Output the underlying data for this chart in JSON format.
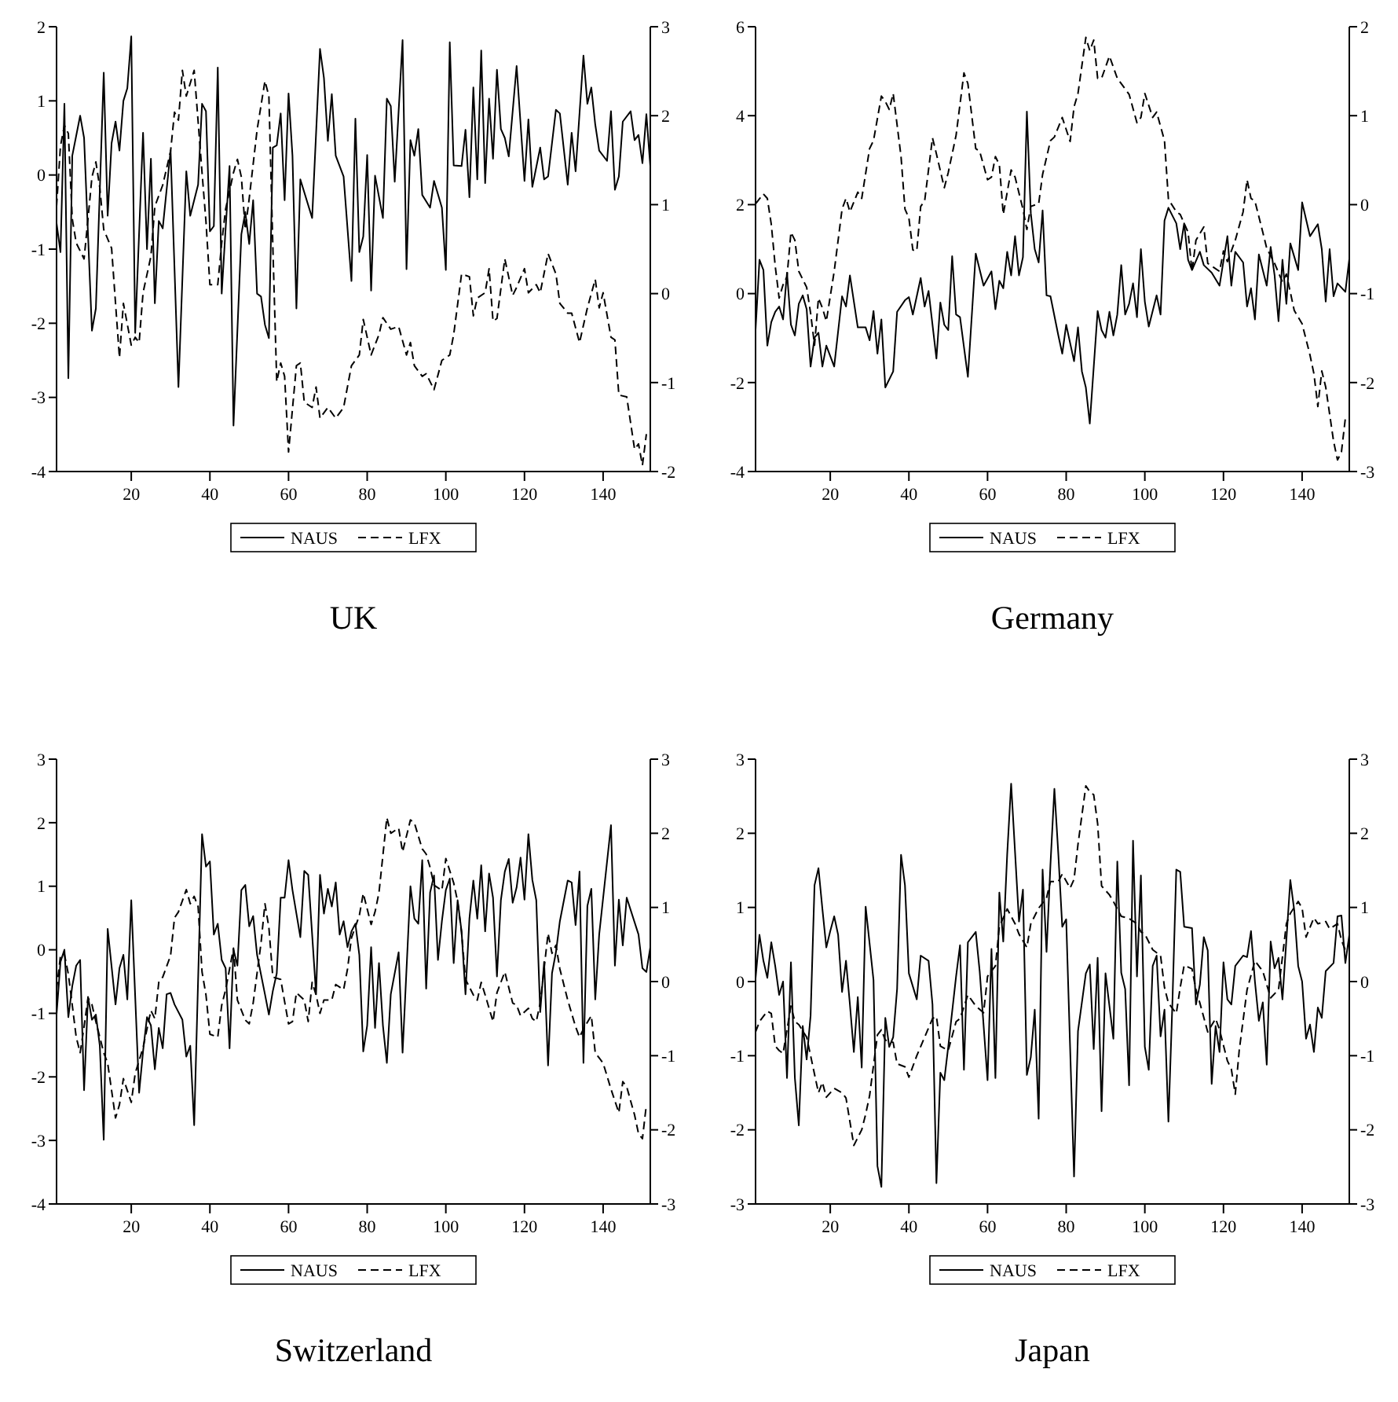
{
  "chart_data": [
    {
      "type": "line",
      "title": "UK",
      "xlim": [
        1,
        152
      ],
      "xticks": [
        20,
        40,
        60,
        80,
        100,
        120,
        140
      ],
      "ylim": [
        -4,
        2
      ],
      "yticks": [
        -4,
        -3,
        -2,
        -1,
        0,
        1,
        2
      ],
      "y2lim": [
        -2,
        3
      ],
      "y2ticks": [
        -2,
        -1,
        0,
        1,
        2,
        3
      ],
      "legend": "bottom",
      "series": [
        {
          "name": "NAUS",
          "color": "#000000",
          "line_style": "solid",
          "x": [
            1,
            2,
            3,
            4,
            5,
            7,
            8,
            10,
            11,
            13,
            14,
            15,
            16,
            17,
            18,
            19,
            20,
            21,
            23,
            24,
            25,
            26,
            27,
            28,
            30,
            32,
            34,
            35,
            37,
            38,
            39,
            40,
            41,
            42,
            43,
            44,
            45,
            46,
            48,
            49,
            50,
            51,
            52,
            53,
            54,
            55,
            56,
            57,
            58,
            59,
            60,
            61,
            62,
            63,
            66,
            68,
            69,
            70,
            71,
            72,
            74,
            76,
            77,
            78,
            79,
            80,
            81,
            82,
            84,
            85,
            86,
            87,
            89,
            90,
            91,
            92,
            93,
            94,
            96,
            97,
            99,
            100,
            101,
            102,
            104,
            105,
            106,
            107,
            108,
            109,
            110,
            111,
            112,
            113,
            114,
            115,
            116,
            118,
            120,
            121,
            122,
            124,
            125,
            126,
            128,
            129,
            131,
            132,
            133,
            135,
            136,
            137,
            138,
            139,
            141,
            142,
            143,
            144,
            145,
            147,
            148,
            149,
            150,
            151,
            152
          ],
          "values": [
            -0.65,
            -1.04,
            0.96,
            -2.74,
            0.26,
            0.8,
            0.5,
            -2.1,
            -1.8,
            1.38,
            -0.55,
            0.43,
            0.72,
            0.33,
            1.0,
            1.17,
            1.87,
            -2.13,
            0.57,
            -1.0,
            0.22,
            -1.73,
            -0.62,
            -0.72,
            0.33,
            -2.86,
            0.05,
            -0.55,
            -0.13,
            0.96,
            0.86,
            -0.76,
            -0.69,
            1.45,
            -1.6,
            -0.72,
            0.12,
            -3.38,
            -0.8,
            -0.5,
            -0.93,
            -0.34,
            -1.6,
            -1.64,
            -2.02,
            -2.2,
            0.37,
            0.4,
            0.83,
            -0.34,
            1.1,
            0.26,
            -1.8,
            -0.06,
            -0.58,
            1.7,
            1.31,
            0.46,
            1.09,
            0.26,
            -0.02,
            -1.43,
            0.76,
            -1.04,
            -0.83,
            0.27,
            -1.56,
            -0.01,
            -0.58,
            1.03,
            0.93,
            -0.09,
            1.82,
            -1.27,
            0.47,
            0.26,
            0.62,
            -0.27,
            -0.44,
            -0.08,
            -0.44,
            -1.28,
            1.79,
            0.13,
            0.12,
            0.61,
            -0.3,
            1.18,
            -0.06,
            1.68,
            -0.11,
            1.03,
            0.22,
            1.42,
            0.62,
            0.5,
            0.25,
            1.47,
            -0.08,
            0.75,
            -0.16,
            0.37,
            -0.06,
            -0.02,
            0.88,
            0.83,
            -0.13,
            0.57,
            0.05,
            1.61,
            0.96,
            1.18,
            0.68,
            0.33,
            0.19,
            0.86,
            -0.2,
            -0.02,
            0.72,
            0.86,
            0.47,
            0.54,
            0.16,
            0.82,
            0.12
          ]
        },
        {
          "name": "LFX",
          "color": "#000000",
          "line_style": "dashed",
          "axis": "y2",
          "x": [
            1,
            2,
            3,
            4,
            5,
            6,
            7,
            8,
            9,
            10,
            11,
            12,
            13,
            15,
            16,
            17,
            18,
            20,
            21,
            22,
            23,
            25,
            26,
            28,
            30,
            31,
            32,
            33,
            34,
            36,
            38,
            39,
            40,
            42,
            43,
            44,
            46,
            47,
            48,
            49,
            50,
            52,
            54,
            55,
            56,
            57,
            58,
            59,
            60,
            62,
            63,
            64,
            66,
            67,
            68,
            70,
            72,
            74,
            76,
            78,
            79,
            81,
            83,
            84,
            86,
            88,
            90,
            91,
            92,
            94,
            95,
            97,
            99,
            101,
            102,
            104,
            106,
            107,
            108,
            110,
            111,
            112,
            113,
            115,
            117,
            118,
            120,
            121,
            123,
            124,
            126,
            128,
            129,
            131,
            132,
            134,
            136,
            138,
            139,
            140,
            142,
            143,
            144,
            146,
            148,
            149,
            150,
            151
          ],
          "values": [
            0.98,
            1.66,
            1.89,
            1.8,
            0.84,
            0.57,
            0.48,
            0.39,
            0.84,
            1.31,
            1.48,
            1.19,
            0.72,
            0.51,
            -0.11,
            -0.72,
            -0.11,
            -0.58,
            -0.49,
            -0.55,
            0.01,
            0.42,
            0.98,
            1.22,
            1.6,
            2.04,
            1.95,
            2.51,
            2.22,
            2.51,
            1.36,
            0.81,
            0.1,
            0.1,
            0.57,
            0.95,
            1.36,
            1.51,
            1.31,
            0.72,
            1.07,
            1.84,
            2.39,
            2.22,
            0.54,
            -0.99,
            -0.78,
            -0.93,
            -1.78,
            -0.81,
            -0.78,
            -1.22,
            -1.28,
            -1.05,
            -1.4,
            -1.28,
            -1.4,
            -1.28,
            -0.81,
            -0.69,
            -0.29,
            -0.69,
            -0.46,
            -0.27,
            -0.4,
            -0.37,
            -0.69,
            -0.55,
            -0.81,
            -0.93,
            -0.9,
            -1.08,
            -0.75,
            -0.69,
            -0.46,
            0.22,
            0.19,
            -0.25,
            -0.05,
            0.01,
            0.28,
            -0.31,
            -0.28,
            0.39,
            -0.02,
            0.07,
            0.28,
            0.01,
            0.1,
            0.01,
            0.45,
            0.22,
            -0.11,
            -0.22,
            -0.22,
            -0.55,
            -0.16,
            0.16,
            -0.16,
            0.01,
            -0.49,
            -0.52,
            -1.14,
            -1.16,
            -1.75,
            -1.69,
            -1.93,
            -1.58
          ]
        }
      ]
    },
    {
      "type": "line",
      "title": "Germany",
      "xlim": [
        1,
        152
      ],
      "xticks": [
        20,
        40,
        60,
        80,
        100,
        120,
        140
      ],
      "ylim": [
        -4,
        6
      ],
      "yticks": [
        -4,
        -2,
        0,
        2,
        4,
        6
      ],
      "y2lim": [
        -3,
        2
      ],
      "y2ticks": [
        -3,
        -2,
        -1,
        0,
        1,
        2
      ],
      "legend": "bottom",
      "series": [
        {
          "name": "NAUS",
          "color": "#000000",
          "line_style": "solid",
          "x": [
            1,
            2,
            3,
            4,
            5,
            6,
            7,
            8,
            9,
            10,
            11,
            12,
            13,
            14,
            15,
            16,
            17,
            18,
            19,
            21,
            23,
            24,
            25,
            27,
            29,
            30,
            31,
            32,
            33,
            34,
            36,
            37,
            39,
            40,
            41,
            43,
            44,
            45,
            47,
            48,
            49,
            50,
            51,
            52,
            53,
            55,
            57,
            59,
            61,
            62,
            63,
            64,
            65,
            66,
            67,
            68,
            69,
            70,
            71,
            72,
            73,
            74,
            75,
            76,
            78,
            79,
            80,
            82,
            83,
            84,
            85,
            86,
            88,
            89,
            90,
            91,
            92,
            93,
            94,
            95,
            96,
            97,
            98,
            99,
            100,
            101,
            103,
            104,
            105,
            106,
            108,
            109,
            110,
            111,
            112,
            114,
            115,
            117,
            119,
            121,
            122,
            123,
            125,
            126,
            127,
            128,
            129,
            131,
            132,
            133,
            134,
            135,
            136,
            137,
            139,
            140,
            142,
            144,
            145,
            146,
            147,
            148,
            149,
            151,
            152
          ],
          "values": [
            -0.82,
            0.76,
            0.53,
            -1.17,
            -0.64,
            -0.41,
            -0.29,
            -0.58,
            0.47,
            -0.7,
            -0.94,
            -0.23,
            -0.04,
            -0.35,
            -1.64,
            -0.99,
            -0.88,
            -1.64,
            -1.17,
            -1.64,
            -0.06,
            -0.29,
            0.41,
            -0.76,
            -0.76,
            -1.05,
            -0.39,
            -1.35,
            -0.58,
            -2.11,
            -1.75,
            -0.41,
            -0.15,
            -0.08,
            -0.47,
            0.35,
            -0.29,
            0.06,
            -1.46,
            -0.2,
            -0.7,
            -0.82,
            0.84,
            -0.47,
            -0.53,
            -1.87,
            0.9,
            0.18,
            0.5,
            -0.35,
            0.29,
            0.12,
            0.94,
            0.41,
            1.29,
            0.41,
            0.82,
            4.09,
            1.81,
            1.0,
            0.7,
            1.87,
            -0.04,
            -0.06,
            -0.94,
            -1.35,
            -0.7,
            -1.52,
            -0.76,
            -1.75,
            -2.11,
            -2.92,
            -0.39,
            -0.82,
            -0.99,
            -0.41,
            -0.94,
            -0.47,
            0.64,
            -0.47,
            -0.23,
            0.23,
            -0.53,
            1.0,
            -0.18,
            -0.74,
            -0.04,
            -0.47,
            1.64,
            1.93,
            1.58,
            1.0,
            1.58,
            0.76,
            0.53,
            0.94,
            0.64,
            0.47,
            0.18,
            1.29,
            0.18,
            0.94,
            0.7,
            -0.29,
            0.12,
            -0.58,
            0.88,
            0.18,
            1.05,
            0.41,
            -0.62,
            0.76,
            -0.23,
            1.13,
            0.53,
            2.05,
            1.29,
            1.56,
            1.0,
            -0.18,
            1.0,
            -0.06,
            0.23,
            0.04,
            0.78
          ]
        },
        {
          "name": "LFX",
          "color": "#000000",
          "line_style": "dashed",
          "axis": "y2",
          "x": [
            1,
            3,
            4,
            5,
            6,
            7,
            8,
            9,
            10,
            11,
            12,
            13,
            14,
            15,
            16,
            17,
            18,
            19,
            21,
            23,
            24,
            25,
            27,
            28,
            30,
            31,
            33,
            34,
            35,
            36,
            38,
            39,
            40,
            41,
            42,
            43,
            44,
            46,
            47,
            49,
            50,
            52,
            54,
            55,
            57,
            58,
            60,
            61,
            62,
            63,
            64,
            66,
            67,
            69,
            70,
            71,
            73,
            74,
            76,
            77,
            79,
            81,
            82,
            83,
            85,
            86,
            87,
            88,
            89,
            91,
            93,
            94,
            96,
            98,
            99,
            100,
            102,
            103,
            105,
            106,
            108,
            109,
            111,
            112,
            113,
            115,
            116,
            119,
            120,
            121,
            123,
            125,
            126,
            127,
            128,
            130,
            131,
            133,
            135,
            136,
            138,
            140,
            142,
            143,
            144,
            145,
            146,
            148,
            149,
            150,
            151
          ],
          "values": [
            0.01,
            0.12,
            0.07,
            -0.22,
            -0.69,
            -1.05,
            -0.9,
            -0.81,
            -0.31,
            -0.4,
            -0.75,
            -0.84,
            -0.93,
            -1.22,
            -1.58,
            -1.05,
            -1.16,
            -1.31,
            -0.75,
            -0.05,
            0.07,
            -0.08,
            0.14,
            0.07,
            0.63,
            0.72,
            1.22,
            1.16,
            1.07,
            1.25,
            0.54,
            -0.05,
            -0.15,
            -0.51,
            -0.52,
            -0.02,
            0.04,
            0.75,
            0.57,
            0.19,
            0.36,
            0.78,
            1.48,
            1.36,
            0.63,
            0.6,
            0.28,
            0.31,
            0.54,
            0.45,
            -0.11,
            0.39,
            0.31,
            -0.05,
            -0.28,
            -0.02,
            0.01,
            0.34,
            0.72,
            0.76,
            0.98,
            0.71,
            1.1,
            1.25,
            1.88,
            1.73,
            1.85,
            1.42,
            1.42,
            1.67,
            1.42,
            1.36,
            1.24,
            0.92,
            0.98,
            1.25,
            0.98,
            1.04,
            0.72,
            0.06,
            -0.08,
            -0.11,
            -0.31,
            -0.75,
            -0.4,
            -0.25,
            -0.66,
            -0.75,
            -0.52,
            -0.64,
            -0.4,
            -0.08,
            0.28,
            0.07,
            0.04,
            -0.31,
            -0.49,
            -0.66,
            -0.87,
            -0.78,
            -1.19,
            -1.34,
            -1.69,
            -1.9,
            -2.27,
            -1.87,
            -2.05,
            -2.66,
            -2.87,
            -2.78,
            -2.4
          ]
        }
      ]
    },
    {
      "type": "line",
      "title": "Switzerland",
      "xlim": [
        1,
        152
      ],
      "xticks": [
        20,
        40,
        60,
        80,
        100,
        120,
        140
      ],
      "ylim": [
        -4,
        3
      ],
      "yticks": [
        -4,
        -3,
        -2,
        -1,
        0,
        1,
        2,
        3
      ],
      "y2lim": [
        -3,
        3
      ],
      "y2ticks": [
        -3,
        -2,
        -1,
        0,
        1,
        2,
        3
      ],
      "legend": "bottom",
      "series": [
        {
          "name": "NAUS",
          "color": "#000000",
          "line_style": "solid",
          "x": [
            1,
            2,
            3,
            4,
            5,
            6,
            7,
            8,
            9,
            10,
            11,
            12,
            13,
            14,
            16,
            17,
            18,
            19,
            20,
            22,
            23,
            24,
            25,
            26,
            27,
            28,
            29,
            30,
            31,
            33,
            34,
            35,
            36,
            38,
            39,
            40,
            41,
            42,
            43,
            44,
            45,
            46,
            47,
            48,
            49,
            50,
            51,
            52,
            54,
            55,
            56,
            57,
            58,
            59,
            60,
            61,
            63,
            64,
            65,
            67,
            68,
            69,
            70,
            71,
            72,
            73,
            74,
            75,
            76,
            77,
            78,
            79,
            80,
            81,
            82,
            83,
            84,
            85,
            86,
            88,
            89,
            91,
            92,
            93,
            94,
            95,
            96,
            97,
            98,
            99,
            100,
            101,
            102,
            103,
            104,
            105,
            106,
            107,
            108,
            109,
            110,
            111,
            112,
            113,
            114,
            115,
            116,
            117,
            118,
            119,
            120,
            121,
            122,
            123,
            124,
            125,
            126,
            127,
            128,
            129,
            131,
            132,
            133,
            134,
            135,
            136,
            137,
            138,
            139,
            142,
            143,
            144,
            145,
            146,
            149,
            150,
            151,
            152
          ],
          "values": [
            -1.02,
            -0.19,
            0.0,
            -1.06,
            -0.57,
            -0.25,
            -0.16,
            -2.21,
            -0.74,
            -1.1,
            -1.02,
            -1.51,
            -2.99,
            0.33,
            -0.86,
            -0.29,
            -0.08,
            -0.78,
            0.78,
            -2.25,
            -1.6,
            -1.06,
            -1.19,
            -1.88,
            -1.23,
            -1.55,
            -0.7,
            -0.68,
            -0.86,
            -1.1,
            -1.68,
            -1.51,
            -2.76,
            1.82,
            1.31,
            1.39,
            0.24,
            0.41,
            -0.16,
            -0.29,
            -1.55,
            0.0,
            -0.25,
            0.94,
            1.02,
            0.37,
            0.53,
            -0.08,
            -0.7,
            -1.02,
            -0.65,
            -0.37,
            0.82,
            0.82,
            1.41,
            0.94,
            0.2,
            1.24,
            1.18,
            -0.7,
            1.18,
            0.57,
            0.96,
            0.68,
            1.06,
            0.24,
            0.45,
            0.04,
            0.29,
            0.41,
            -0.08,
            -1.6,
            -1.19,
            0.04,
            -1.23,
            -0.21,
            -1.19,
            -1.78,
            -0.7,
            -0.04,
            -1.62,
            1.0,
            0.49,
            0.41,
            1.41,
            -0.61,
            0.9,
            1.17,
            -0.16,
            0.45,
            0.94,
            1.12,
            -0.21,
            0.78,
            0.29,
            -0.7,
            0.49,
            1.09,
            0.49,
            1.33,
            0.29,
            1.2,
            0.82,
            -0.42,
            0.78,
            1.23,
            1.43,
            0.74,
            0.98,
            1.45,
            0.79,
            1.82,
            1.1,
            0.78,
            -0.98,
            -0.19,
            -1.82,
            -0.37,
            -0.04,
            0.45,
            1.09,
            1.06,
            0.39,
            1.23,
            -1.78,
            0.69,
            0.96,
            -0.78,
            0.24,
            1.96,
            -0.25,
            0.79,
            0.07,
            0.82,
            0.24,
            -0.29,
            -0.35,
            0.04
          ]
        },
        {
          "name": "LFX",
          "color": "#000000",
          "line_style": "dashed",
          "axis": "y2",
          "x": [
            1,
            2,
            3,
            4,
            5,
            6,
            7,
            8,
            9,
            10,
            11,
            13,
            14,
            16,
            17,
            18,
            20,
            21,
            23,
            25,
            26,
            27,
            28,
            30,
            31,
            32,
            34,
            35,
            36,
            37,
            38,
            39,
            40,
            42,
            43,
            44,
            46,
            47,
            49,
            50,
            51,
            53,
            54,
            55,
            56,
            58,
            60,
            61,
            62,
            64,
            65,
            66,
            67,
            68,
            69,
            71,
            72,
            74,
            75,
            76,
            78,
            79,
            81,
            82,
            83,
            85,
            86,
            88,
            89,
            91,
            92,
            94,
            95,
            96,
            97,
            99,
            100,
            102,
            103,
            104,
            105,
            107,
            108,
            109,
            110,
            112,
            113,
            115,
            117,
            118,
            119,
            121,
            122,
            123,
            124,
            126,
            127,
            128,
            129,
            131,
            133,
            134,
            135,
            137,
            138,
            140,
            142,
            144,
            145,
            146,
            148,
            149,
            150,
            151
          ],
          "values": [
            -0.11,
            0.35,
            0.37,
            0.1,
            -0.32,
            -0.75,
            -0.96,
            -0.61,
            -0.22,
            -0.31,
            -0.54,
            -0.96,
            -1.1,
            -1.84,
            -1.66,
            -1.31,
            -1.63,
            -1.24,
            -0.89,
            -0.39,
            -0.5,
            -0.01,
            0.06,
            0.35,
            0.86,
            0.94,
            1.24,
            1.05,
            1.15,
            1.01,
            0.13,
            -0.18,
            -0.71,
            -0.75,
            -0.32,
            -0.11,
            0.45,
            -0.25,
            -0.52,
            -0.57,
            -0.29,
            0.52,
            1.05,
            0.73,
            0.06,
            0.03,
            -0.57,
            -0.54,
            -0.15,
            -0.25,
            -0.54,
            -0.01,
            -0.18,
            -0.43,
            -0.25,
            -0.25,
            -0.04,
            -0.11,
            0.17,
            0.59,
            0.89,
            1.19,
            0.77,
            0.94,
            1.2,
            2.21,
            2.0,
            2.07,
            1.75,
            2.18,
            2.14,
            1.79,
            1.72,
            1.54,
            1.3,
            1.23,
            1.66,
            1.33,
            1.08,
            0.66,
            0.03,
            -0.18,
            -0.25,
            -0.01,
            -0.18,
            -0.54,
            -0.15,
            0.13,
            -0.29,
            -0.32,
            -0.46,
            -0.36,
            -0.5,
            -0.54,
            -0.29,
            0.65,
            0.38,
            0.49,
            0.17,
            -0.25,
            -0.61,
            -0.75,
            -0.64,
            -0.46,
            -0.96,
            -1.1,
            -1.45,
            -1.77,
            -1.35,
            -1.42,
            -1.8,
            -2.05,
            -2.12,
            -1.66
          ]
        }
      ]
    },
    {
      "type": "line",
      "title": "Japan",
      "xlim": [
        1,
        152
      ],
      "xticks": [
        20,
        40,
        60,
        80,
        100,
        120,
        140
      ],
      "ylim": [
        -3,
        3
      ],
      "yticks": [
        -3,
        -2,
        -1,
        0,
        1,
        2,
        3
      ],
      "y2lim": [
        -3,
        3
      ],
      "y2ticks": [
        -3,
        -2,
        -1,
        0,
        1,
        2,
        3
      ],
      "legend": "bottom",
      "series": [
        {
          "name": "NAUS",
          "color": "#000000",
          "line_style": "solid",
          "x": [
            1,
            2,
            3,
            4,
            5,
            6,
            7,
            8,
            9,
            10,
            11,
            12,
            13,
            14,
            15,
            16,
            17,
            18,
            19,
            20,
            21,
            22,
            23,
            24,
            25,
            26,
            27,
            28,
            29,
            31,
            32,
            33,
            34,
            35,
            36,
            37,
            38,
            39,
            40,
            42,
            43,
            45,
            46,
            47,
            48,
            49,
            50,
            52,
            53,
            54,
            55,
            57,
            58,
            60,
            61,
            62,
            63,
            64,
            65,
            66,
            68,
            69,
            70,
            71,
            72,
            73,
            74,
            75,
            76,
            77,
            78,
            79,
            80,
            82,
            83,
            85,
            86,
            87,
            88,
            89,
            90,
            92,
            93,
            94,
            95,
            96,
            97,
            98,
            99,
            100,
            101,
            102,
            103,
            104,
            105,
            106,
            107,
            108,
            109,
            110,
            112,
            113,
            114,
            115,
            116,
            117,
            118,
            119,
            120,
            121,
            122,
            123,
            125,
            126,
            127,
            128,
            129,
            130,
            131,
            132,
            133,
            134,
            135,
            137,
            138,
            139,
            140,
            141,
            142,
            143,
            144,
            145,
            146,
            148,
            149,
            150,
            151,
            152
          ],
          "values": [
            0.04,
            0.63,
            0.28,
            0.05,
            0.53,
            0.21,
            -0.18,
            0.0,
            -1.3,
            0.26,
            -1.3,
            -1.94,
            -0.6,
            -1.05,
            -0.46,
            1.3,
            1.53,
            0.98,
            0.46,
            0.68,
            0.88,
            0.63,
            -0.14,
            0.28,
            -0.31,
            -0.95,
            -0.21,
            -1.16,
            1.01,
            0.02,
            -2.49,
            -2.77,
            -0.49,
            -0.88,
            -0.75,
            -0.1,
            1.71,
            1.3,
            0.11,
            -0.24,
            0.35,
            0.28,
            -0.31,
            -2.72,
            -1.23,
            -1.33,
            -0.88,
            0.07,
            0.49,
            -1.19,
            0.53,
            0.67,
            0.14,
            -1.33,
            0.44,
            -1.3,
            1.2,
            0.54,
            1.72,
            2.67,
            0.81,
            1.24,
            -1.26,
            -1.02,
            -0.38,
            -1.85,
            1.51,
            0.4,
            1.58,
            2.6,
            1.72,
            0.74,
            0.84,
            -2.63,
            -0.67,
            0.11,
            0.23,
            -0.91,
            0.32,
            -1.75,
            0.11,
            -0.77,
            1.62,
            0.12,
            -0.1,
            -1.4,
            1.9,
            0.07,
            1.43,
            -0.88,
            -1.19,
            0.21,
            0.35,
            -0.74,
            -0.38,
            -1.89,
            -0.31,
            1.51,
            1.48,
            0.74,
            0.72,
            -0.31,
            -0.04,
            0.6,
            0.42,
            -1.38,
            -0.6,
            -0.95,
            0.26,
            -0.24,
            -0.31,
            0.21,
            0.35,
            0.33,
            0.68,
            0.0,
            -0.53,
            -0.28,
            -1.12,
            0.54,
            0.18,
            0.32,
            -0.24,
            1.37,
            0.96,
            0.21,
            0.0,
            -0.77,
            -0.58,
            -0.95,
            -0.35,
            -0.49,
            0.14,
            0.25,
            0.88,
            0.89,
            0.25,
            0.63
          ]
        },
        {
          "name": "LFX",
          "color": "#000000",
          "line_style": "dashed",
          "axis": "y2",
          "x": [
            1,
            2,
            4,
            5,
            6,
            7,
            8,
            10,
            11,
            12,
            14,
            15,
            17,
            18,
            19,
            21,
            23,
            24,
            26,
            28,
            29,
            30,
            32,
            33,
            34,
            36,
            37,
            39,
            40,
            42,
            44,
            46,
            47,
            48,
            50,
            52,
            53,
            55,
            57,
            59,
            60,
            62,
            63,
            65,
            67,
            68,
            70,
            71,
            73,
            75,
            76,
            78,
            79,
            81,
            82,
            83,
            85,
            86,
            87,
            88,
            89,
            91,
            92,
            94,
            96,
            98,
            99,
            100,
            102,
            104,
            105,
            106,
            108,
            109,
            110,
            112,
            113,
            114,
            116,
            118,
            119,
            121,
            122,
            123,
            124,
            126,
            128,
            130,
            131,
            132,
            134,
            136,
            137,
            139,
            140,
            141,
            143,
            144,
            146,
            147,
            149,
            150,
            151
          ],
          "values": [
            -0.68,
            -0.54,
            -0.4,
            -0.43,
            -0.87,
            -0.93,
            -0.97,
            -0.33,
            -0.54,
            -0.58,
            -0.75,
            -1.0,
            -1.5,
            -1.36,
            -1.56,
            -1.44,
            -1.5,
            -1.57,
            -2.21,
            -2.0,
            -1.79,
            -1.54,
            -0.72,
            -0.65,
            -0.79,
            -0.82,
            -1.11,
            -1.15,
            -1.29,
            -1.0,
            -0.75,
            -0.5,
            -0.47,
            -0.87,
            -0.93,
            -0.54,
            -0.5,
            -0.18,
            -0.33,
            -0.42,
            0.07,
            0.21,
            0.74,
            0.98,
            0.78,
            0.64,
            0.46,
            0.78,
            0.99,
            1.13,
            1.35,
            1.35,
            1.45,
            1.26,
            1.38,
            1.85,
            2.64,
            2.56,
            2.52,
            2.13,
            1.29,
            1.17,
            1.08,
            0.88,
            0.85,
            0.78,
            0.67,
            0.64,
            0.43,
            0.35,
            -0.08,
            -0.29,
            -0.43,
            -0.08,
            0.22,
            0.17,
            -0.11,
            -0.29,
            -0.68,
            -0.5,
            -0.65,
            -1.07,
            -1.18,
            -1.52,
            -0.93,
            -0.11,
            0.28,
            0.14,
            -0.04,
            -0.22,
            -0.11,
            0.78,
            0.92,
            1.08,
            0.99,
            0.6,
            0.86,
            0.78,
            0.81,
            0.71,
            0.78,
            0.56,
            0.42
          ]
        }
      ]
    }
  ]
}
